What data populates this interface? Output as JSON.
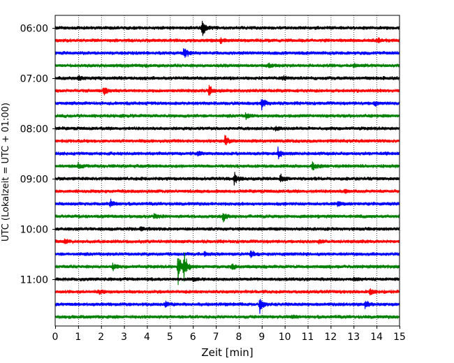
{
  "chart_data": {
    "type": "line",
    "title": "",
    "xlabel": "Zeit  [min]",
    "ylabel": "UTC (Lokalzeit = UTC + 01:00)",
    "xlim": [
      0,
      15
    ],
    "x_ticks": [
      "0",
      "1",
      "2",
      "3",
      "4",
      "5",
      "6",
      "7",
      "8",
      "9",
      "10",
      "11",
      "12",
      "13",
      "14",
      "15"
    ],
    "y_tick_labels": [
      "06:00",
      "07:00",
      "08:00",
      "09:00",
      "10:00",
      "11:00"
    ],
    "grid": "vertical dotted at each minute",
    "trace_interval_min": 15,
    "color_cycle": [
      "#000000",
      "#ff0000",
      "#0000ff",
      "#008000"
    ],
    "traces": [
      {
        "start": "06:00",
        "events": [
          {
            "t": 6.4,
            "amp": 1.0
          }
        ]
      },
      {
        "start": "06:15",
        "events": [
          {
            "t": 7.2,
            "amp": 0.35
          },
          {
            "t": 14.0,
            "amp": 0.3
          }
        ]
      },
      {
        "start": "06:30",
        "events": [
          {
            "t": 5.6,
            "amp": 0.8
          }
        ]
      },
      {
        "start": "06:45",
        "events": [
          {
            "t": 9.3,
            "amp": 0.25
          },
          {
            "t": 13.0,
            "amp": 0.3
          }
        ]
      },
      {
        "start": "07:00",
        "events": [
          {
            "t": 1.0,
            "amp": 0.35
          },
          {
            "t": 9.9,
            "amp": 0.25
          }
        ]
      },
      {
        "start": "07:15",
        "events": [
          {
            "t": 2.1,
            "amp": 0.6
          },
          {
            "t": 6.7,
            "amp": 0.75
          }
        ]
      },
      {
        "start": "07:30",
        "events": [
          {
            "t": 9.0,
            "amp": 0.8
          },
          {
            "t": 13.9,
            "amp": 0.3
          }
        ]
      },
      {
        "start": "07:45",
        "events": [
          {
            "t": 8.3,
            "amp": 0.4
          }
        ]
      },
      {
        "start": "08:00",
        "events": [
          {
            "t": 9.6,
            "amp": 0.35
          }
        ]
      },
      {
        "start": "08:15",
        "events": [
          {
            "t": 7.4,
            "amp": 0.7
          }
        ]
      },
      {
        "start": "08:30",
        "events": [
          {
            "t": 9.7,
            "amp": 0.8
          },
          {
            "t": 6.2,
            "amp": 0.3
          }
        ]
      },
      {
        "start": "08:45",
        "events": [
          {
            "t": 1.0,
            "amp": 0.3
          },
          {
            "t": 11.2,
            "amp": 0.65
          }
        ]
      },
      {
        "start": "09:00",
        "events": [
          {
            "t": 7.8,
            "amp": 0.9
          },
          {
            "t": 9.8,
            "amp": 0.65
          }
        ]
      },
      {
        "start": "09:15",
        "events": [
          {
            "t": 12.6,
            "amp": 0.25
          }
        ]
      },
      {
        "start": "09:30",
        "events": [
          {
            "t": 2.4,
            "amp": 0.5
          },
          {
            "t": 12.3,
            "amp": 0.3
          }
        ]
      },
      {
        "start": "09:45",
        "events": [
          {
            "t": 7.3,
            "amp": 0.7
          },
          {
            "t": 4.3,
            "amp": 0.3
          }
        ]
      },
      {
        "start": "10:00",
        "events": [
          {
            "t": 3.7,
            "amp": 0.3
          }
        ]
      },
      {
        "start": "10:15",
        "events": [
          {
            "t": 0.4,
            "amp": 0.3
          },
          {
            "t": 11.5,
            "amp": 0.25
          }
        ]
      },
      {
        "start": "10:30",
        "events": [
          {
            "t": 8.5,
            "amp": 0.55
          },
          {
            "t": 6.5,
            "amp": 0.3
          }
        ]
      },
      {
        "start": "10:45",
        "events": [
          {
            "t": 5.35,
            "amp": 2.4
          },
          {
            "t": 5.6,
            "amp": 1.8
          },
          {
            "t": 2.5,
            "amp": 0.35
          },
          {
            "t": 7.7,
            "amp": 0.35
          }
        ]
      },
      {
        "start": "11:00",
        "events": [
          {
            "t": 6.0,
            "amp": 0.25
          },
          {
            "t": 13.0,
            "amp": 0.3
          }
        ]
      },
      {
        "start": "11:15",
        "events": [
          {
            "t": 1.9,
            "amp": 0.3
          },
          {
            "t": 13.7,
            "amp": 0.4
          }
        ]
      },
      {
        "start": "11:30",
        "events": [
          {
            "t": 8.9,
            "amp": 1.1
          },
          {
            "t": 13.5,
            "amp": 0.55
          },
          {
            "t": 4.8,
            "amp": 0.35
          }
        ]
      },
      {
        "start": "11:45",
        "events": [
          {
            "t": 10.3,
            "amp": 0.2
          }
        ]
      }
    ]
  }
}
